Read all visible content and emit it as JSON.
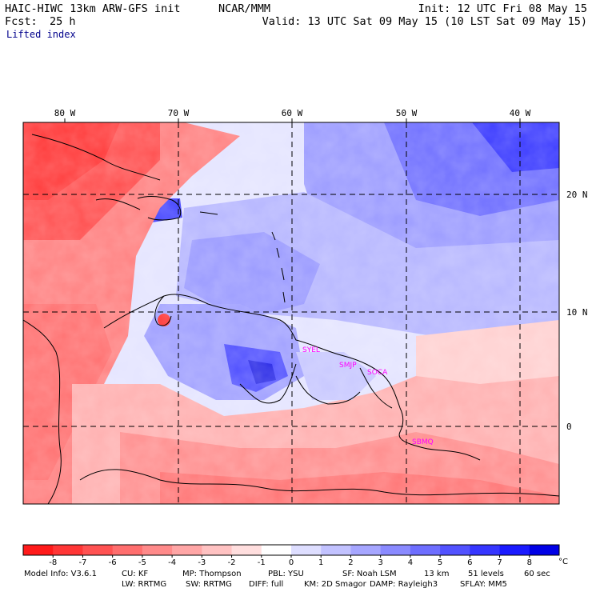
{
  "header": {
    "model_title": "HAIC-HIWC 13km ARW-GFS init",
    "organization": "NCAR/MMM",
    "forecast_label": "Fcst:",
    "forecast_hours": "25 h",
    "init_text": "Init: 12 UTC Fri 08 May 15",
    "valid_text": "Valid: 13 UTC Sat 09 May 15 (10 LST Sat 09 May 15)",
    "field_name": "Lifted index"
  },
  "map": {
    "longitude_labels": [
      "80 W",
      "70 W",
      "60 W",
      "50 W",
      "40 W"
    ],
    "latitude_labels": [
      "20 N",
      "10 N",
      "0"
    ],
    "station_labels": [
      "SYEL",
      "SMJP",
      "SOCA",
      "SBMQ"
    ],
    "station_label_color": "#ff00ff",
    "grid_style": "dashed",
    "negative_color": "#ff0000",
    "positive_color": "#0000ff"
  },
  "colorbar": {
    "tick_labels": [
      "-8",
      "-7",
      "-6",
      "-5",
      "-4",
      "-3",
      "-2",
      "-1",
      "0",
      "1",
      "2",
      "3",
      "4",
      "5",
      "6",
      "7",
      "8"
    ],
    "unit": "°C",
    "colors": [
      "#ff1a1a",
      "#ff3636",
      "#ff5252",
      "#ff6e6e",
      "#ff8a8a",
      "#ffa6a6",
      "#ffc2c2",
      "#ffdede",
      "#ffffff",
      "#dedeff",
      "#c2c2ff",
      "#a6a6ff",
      "#8a8aff",
      "#6e6eff",
      "#5252ff",
      "#3636ff",
      "#1a1aff",
      "#0000e6"
    ]
  },
  "footer": {
    "line1": [
      "Model Info: V3.6.1",
      "CU: KF",
      "MP: Thompson",
      "PBL: YSU",
      "SF: Noah LSM",
      "13 km",
      "51 levels",
      "60 sec"
    ],
    "line2": [
      "LW: RRTMG",
      "SW: RRTMG",
      "DIFF: full",
      "KM: 2D Smagor",
      "DAMP: Rayleigh3",
      "SFLAY: MM5"
    ]
  }
}
